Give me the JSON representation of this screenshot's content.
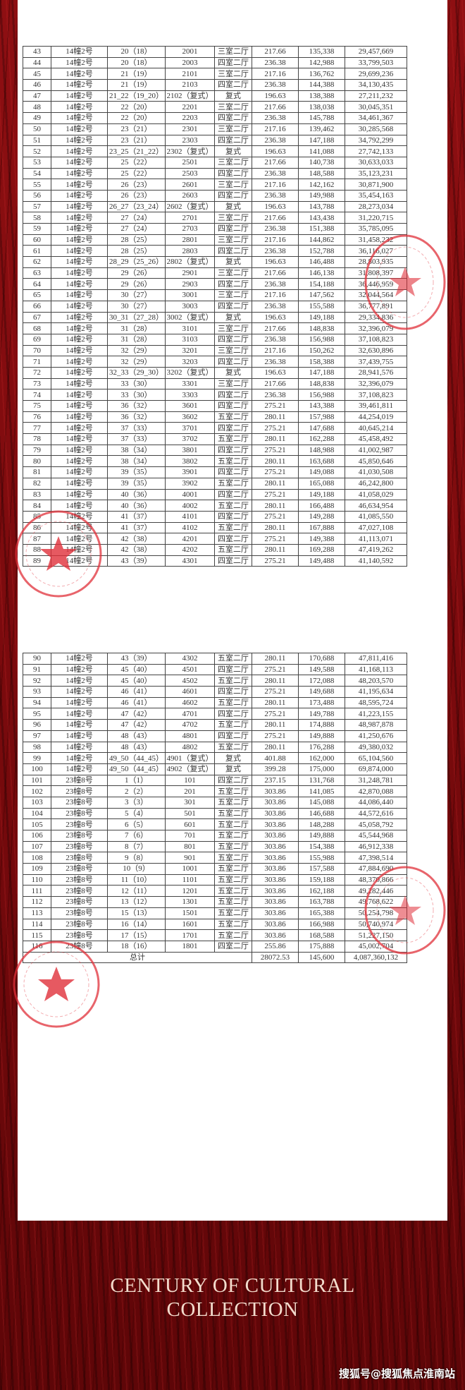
{
  "document": {
    "columns_count": 8,
    "table1": {
      "rows": [
        [
          "43",
          "14幢2号",
          "20（18）",
          "2001",
          "三室二厅",
          "217.66",
          "135,338",
          "29,457,669"
        ],
        [
          "44",
          "14幢2号",
          "20（18）",
          "2003",
          "四室二厅",
          "236.38",
          "142,988",
          "33,799,503"
        ],
        [
          "45",
          "14幢2号",
          "21（19）",
          "2101",
          "三室二厅",
          "217.16",
          "136,762",
          "29,699,236"
        ],
        [
          "46",
          "14幢2号",
          "21（19）",
          "2103",
          "四室二厅",
          "236.38",
          "144,388",
          "34,130,435"
        ],
        [
          "47",
          "14幢2号",
          "21_22（19_20）",
          "2102（复式）",
          "复式",
          "196.63",
          "138,388",
          "27,211,232"
        ],
        [
          "48",
          "14幢2号",
          "22（20）",
          "2201",
          "三室二厅",
          "217.66",
          "138,038",
          "30,045,351"
        ],
        [
          "49",
          "14幢2号",
          "22（20）",
          "2203",
          "四室二厅",
          "236.38",
          "145,788",
          "34,461,367"
        ],
        [
          "50",
          "14幢2号",
          "23（21）",
          "2301",
          "三室二厅",
          "217.16",
          "139,462",
          "30,285,568"
        ],
        [
          "51",
          "14幢2号",
          "23（21）",
          "2303",
          "四室二厅",
          "236.38",
          "147,188",
          "34,792,299"
        ],
        [
          "52",
          "14幢2号",
          "23_25（21_22）",
          "2302（复式）",
          "复式",
          "196.63",
          "141,088",
          "27,742,133"
        ],
        [
          "53",
          "14幢2号",
          "25（22）",
          "2501",
          "三室二厅",
          "217.66",
          "140,738",
          "30,633,033"
        ],
        [
          "54",
          "14幢2号",
          "25（22）",
          "2503",
          "四室二厅",
          "236.38",
          "148,588",
          "35,123,231"
        ],
        [
          "55",
          "14幢2号",
          "26（23）",
          "2601",
          "三室二厅",
          "217.16",
          "142,162",
          "30,871,900"
        ],
        [
          "56",
          "14幢2号",
          "26（23）",
          "2603",
          "四室二厅",
          "236.38",
          "149,988",
          "35,454,163"
        ],
        [
          "57",
          "14幢2号",
          "26_27（23_24）",
          "2602（复式）",
          "复式",
          "196.63",
          "143,788",
          "28,273,034"
        ],
        [
          "58",
          "14幢2号",
          "27（24）",
          "2701",
          "三室二厅",
          "217.66",
          "143,438",
          "31,220,715"
        ],
        [
          "59",
          "14幢2号",
          "27（24）",
          "2703",
          "四室二厅",
          "236.38",
          "151,388",
          "35,785,095"
        ],
        [
          "60",
          "14幢2号",
          "28（25）",
          "2801",
          "三室二厅",
          "217.16",
          "144,862",
          "31,458,232"
        ],
        [
          "61",
          "14幢2号",
          "28（25）",
          "2803",
          "四室二厅",
          "236.38",
          "152,788",
          "36,116,027"
        ],
        [
          "62",
          "14幢2号",
          "28_29（25_26）",
          "2802（复式）",
          "复式",
          "196.63",
          "146,488",
          "28,803,935"
        ],
        [
          "63",
          "14幢2号",
          "29（26）",
          "2901",
          "三室二厅",
          "217.66",
          "146,138",
          "31,808,397"
        ],
        [
          "64",
          "14幢2号",
          "29（26）",
          "2903",
          "四室二厅",
          "236.38",
          "154,188",
          "36,446,959"
        ],
        [
          "65",
          "14幢2号",
          "30（27）",
          "3001",
          "三室二厅",
          "217.16",
          "147,562",
          "32,044,564"
        ],
        [
          "66",
          "14幢2号",
          "30（27）",
          "3003",
          "四室二厅",
          "236.38",
          "155,588",
          "36,777,891"
        ],
        [
          "67",
          "14幢2号",
          "30_31（27_28）",
          "3002（复式）",
          "复式",
          "196.63",
          "149,188",
          "29,334,836"
        ],
        [
          "68",
          "14幢2号",
          "31（28）",
          "3101",
          "三室二厅",
          "217.66",
          "148,838",
          "32,396,079"
        ],
        [
          "69",
          "14幢2号",
          "31（28）",
          "3103",
          "四室二厅",
          "236.38",
          "156,988",
          "37,108,823"
        ],
        [
          "70",
          "14幢2号",
          "32（29）",
          "3201",
          "三室二厅",
          "217.16",
          "150,262",
          "32,630,896"
        ],
        [
          "71",
          "14幢2号",
          "32（29）",
          "3203",
          "四室二厅",
          "236.38",
          "158,388",
          "37,439,755"
        ],
        [
          "72",
          "14幢2号",
          "32_33（29_30）",
          "3202（复式）",
          "复式",
          "196.63",
          "147,188",
          "28,941,576"
        ],
        [
          "73",
          "14幢2号",
          "33（30）",
          "3301",
          "三室二厅",
          "217.66",
          "148,838",
          "32,396,079"
        ],
        [
          "74",
          "14幢2号",
          "33（30）",
          "3303",
          "四室二厅",
          "236.38",
          "156,988",
          "37,108,823"
        ],
        [
          "75",
          "14幢2号",
          "36（32）",
          "3601",
          "四室二厅",
          "275.21",
          "143,388",
          "39,461,811"
        ],
        [
          "76",
          "14幢2号",
          "36（32）",
          "3602",
          "五室二厅",
          "280.11",
          "157,988",
          "44,254,019"
        ],
        [
          "77",
          "14幢2号",
          "37（33）",
          "3701",
          "四室二厅",
          "275.21",
          "147,688",
          "40,645,214"
        ],
        [
          "78",
          "14幢2号",
          "37（33）",
          "3702",
          "五室二厅",
          "280.11",
          "162,288",
          "45,458,492"
        ],
        [
          "79",
          "14幢2号",
          "38（34）",
          "3801",
          "四室二厅",
          "275.21",
          "148,988",
          "41,002,987"
        ],
        [
          "80",
          "14幢2号",
          "38（34）",
          "3802",
          "五室二厅",
          "280.11",
          "163,688",
          "45,850,646"
        ],
        [
          "81",
          "14幢2号",
          "39（35）",
          "3901",
          "四室二厅",
          "275.21",
          "149,088",
          "41,030,508"
        ],
        [
          "82",
          "14幢2号",
          "39（35）",
          "3902",
          "五室二厅",
          "280.11",
          "165,088",
          "46,242,800"
        ],
        [
          "83",
          "14幢2号",
          "40（36）",
          "4001",
          "四室二厅",
          "275.21",
          "149,188",
          "41,058,029"
        ],
        [
          "84",
          "14幢2号",
          "40（36）",
          "4002",
          "五室二厅",
          "280.11",
          "166,488",
          "46,634,954"
        ],
        [
          "85",
          "14幢2号",
          "41（37）",
          "4101",
          "四室二厅",
          "275.21",
          "149,288",
          "41,085,550"
        ],
        [
          "86",
          "14幢2号",
          "41（37）",
          "4102",
          "五室二厅",
          "280.11",
          "167,888",
          "47,027,108"
        ],
        [
          "87",
          "14幢2号",
          "42（38）",
          "4201",
          "四室二厅",
          "275.21",
          "149,388",
          "41,113,071"
        ],
        [
          "88",
          "14幢2号",
          "42（38）",
          "4202",
          "五室二厅",
          "280.11",
          "169,288",
          "47,419,262"
        ],
        [
          "89",
          "14幢2号",
          "43（39）",
          "4301",
          "四室二厅",
          "275.21",
          "149,488",
          "41,140,592"
        ]
      ]
    },
    "table2": {
      "rows": [
        [
          "90",
          "14幢2号",
          "43（39）",
          "4302",
          "五室二厅",
          "280.11",
          "170,688",
          "47,811,416"
        ],
        [
          "91",
          "14幢2号",
          "45（40）",
          "4501",
          "四室二厅",
          "275.21",
          "149,588",
          "41,168,113"
        ],
        [
          "92",
          "14幢2号",
          "45（40）",
          "4502",
          "五室二厅",
          "280.11",
          "172,088",
          "48,203,570"
        ],
        [
          "93",
          "14幢2号",
          "46（41）",
          "4601",
          "四室二厅",
          "275.21",
          "149,688",
          "41,195,634"
        ],
        [
          "94",
          "14幢2号",
          "46（41）",
          "4602",
          "五室二厅",
          "280.11",
          "173,488",
          "48,595,724"
        ],
        [
          "95",
          "14幢2号",
          "47（42）",
          "4701",
          "四室二厅",
          "275.21",
          "149,788",
          "41,223,155"
        ],
        [
          "96",
          "14幢2号",
          "47（42）",
          "4702",
          "五室二厅",
          "280.11",
          "174,888",
          "48,987,878"
        ],
        [
          "97",
          "14幢2号",
          "48（43）",
          "4801",
          "四室二厅",
          "275.21",
          "149,888",
          "41,250,676"
        ],
        [
          "98",
          "14幢2号",
          "48（43）",
          "4802",
          "五室二厅",
          "280.11",
          "176,288",
          "49,380,032"
        ],
        [
          "99",
          "14幢2号",
          "49_50（44_45）",
          "4901（复式）",
          "复式",
          "401.88",
          "162,000",
          "65,104,560"
        ],
        [
          "100",
          "14幢2号",
          "49_50（44_45）",
          "4902（复式）",
          "复式",
          "399.28",
          "175,000",
          "69,874,000"
        ],
        [
          "101",
          "23幢8号",
          "1（1）",
          "101",
          "四室二厅",
          "237.15",
          "131,768",
          "31,248,781"
        ],
        [
          "102",
          "23幢8号",
          "2（2）",
          "201",
          "五室二厅",
          "303.86",
          "141,085",
          "42,870,088"
        ],
        [
          "103",
          "23幢8号",
          "3（3）",
          "301",
          "五室二厅",
          "303.86",
          "145,088",
          "44,086,440"
        ],
        [
          "104",
          "23幢8号",
          "5（4）",
          "501",
          "五室二厅",
          "303.86",
          "146,688",
          "44,572,616"
        ],
        [
          "105",
          "23幢8号",
          "6（5）",
          "601",
          "五室二厅",
          "303.86",
          "148,288",
          "45,058,792"
        ],
        [
          "106",
          "23幢8号",
          "7（6）",
          "701",
          "五室二厅",
          "303.86",
          "149,888",
          "45,544,968"
        ],
        [
          "107",
          "23幢8号",
          "8（7）",
          "801",
          "五室二厅",
          "303.86",
          "154,388",
          "46,912,338"
        ],
        [
          "108",
          "23幢8号",
          "9（8）",
          "901",
          "五室二厅",
          "303.86",
          "155,988",
          "47,398,514"
        ],
        [
          "109",
          "23幢8号",
          "10（9）",
          "1001",
          "五室二厅",
          "303.86",
          "157,588",
          "47,884,690"
        ],
        [
          "110",
          "23幢8号",
          "11（10）",
          "1101",
          "五室二厅",
          "303.86",
          "159,188",
          "48,370,866"
        ],
        [
          "111",
          "23幢8号",
          "12（11）",
          "1201",
          "五室二厅",
          "303.86",
          "162,188",
          "49,282,446"
        ],
        [
          "112",
          "23幢8号",
          "13（12）",
          "1301",
          "五室二厅",
          "303.86",
          "163,788",
          "49,768,622"
        ],
        [
          "113",
          "23幢8号",
          "15（13）",
          "1501",
          "五室二厅",
          "303.86",
          "165,388",
          "50,254,798"
        ],
        [
          "114",
          "23幢8号",
          "16（14）",
          "1601",
          "五室二厅",
          "303.86",
          "166,988",
          "50,740,974"
        ],
        [
          "115",
          "23幢8号",
          "17（15）",
          "1701",
          "五室二厅",
          "303.86",
          "168,588",
          "51,227,150"
        ],
        [
          "116",
          "23幢8号",
          "18（16）",
          "1801",
          "四室二厅",
          "255.86",
          "175,888",
          "45,002,704"
        ]
      ],
      "total": {
        "label": "总计",
        "area": "28072.53",
        "avg_price": "145,600",
        "sum": "4,087,360,132"
      }
    }
  },
  "footer": {
    "title_line1": "CENTURY OF CULTURAL",
    "title_line2": "COLLECTION",
    "watermark": "搜狐号@搜狐焦点淮南站"
  },
  "colors": {
    "seal": "#e0303a",
    "background": "#7a0a0d",
    "title": "#f3dccd"
  }
}
